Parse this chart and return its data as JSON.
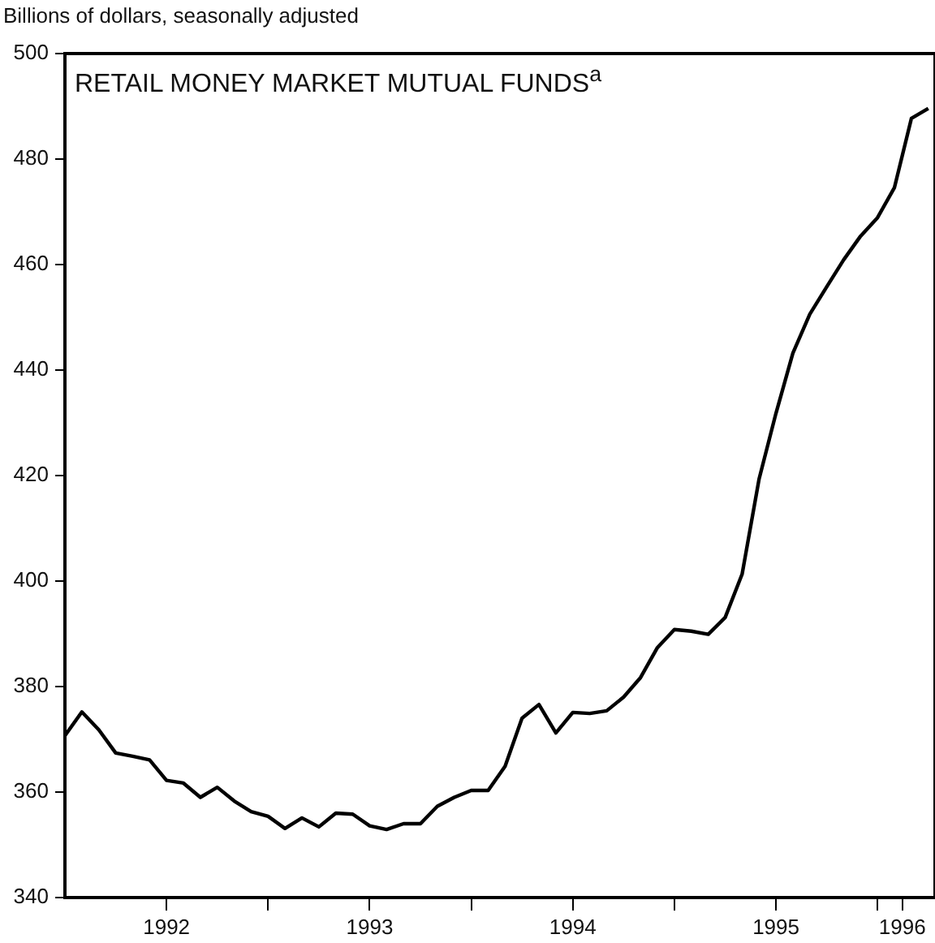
{
  "chart_data": {
    "type": "line",
    "title": "RETAIL MONEY MARKET MUTUAL FUNDS$^{a}$",
    "ylabel": "Billions of dollars, seasonally adjusted",
    "x": [
      "1992-01",
      "1992-02",
      "1992-03",
      "1992-04",
      "1992-05",
      "1992-06",
      "1992-07",
      "1992-08",
      "1992-09",
      "1992-10",
      "1992-11",
      "1992-12",
      "1993-01",
      "1993-02",
      "1993-03",
      "1993-04",
      "1993-05",
      "1993-06",
      "1993-07",
      "1993-08",
      "1993-09",
      "1993-10",
      "1993-11",
      "1993-12",
      "1994-01",
      "1994-02",
      "1994-03",
      "1994-04",
      "1994-05",
      "1994-06",
      "1994-07",
      "1994-08",
      "1994-09",
      "1994-10",
      "1994-11",
      "1994-12",
      "1995-01",
      "1995-02",
      "1995-03",
      "1995-04",
      "1995-05",
      "1995-06",
      "1995-07",
      "1995-08",
      "1995-09",
      "1995-10",
      "1995-11",
      "1995-12",
      "1996-01",
      "1996-02",
      "1996-03",
      "1996-04"
    ],
    "series": [
      {
        "color": "#000000",
        "values": [
          370.7,
          375.2,
          371.8,
          367.4,
          366.8,
          366.1,
          362.2,
          361.7,
          359,
          360.9,
          358.3,
          356.3,
          355.4,
          353.1,
          355.1,
          353.4,
          356,
          355.8,
          353.6,
          352.9,
          354,
          354,
          357.3,
          359,
          360.3,
          360.3,
          364.9,
          374,
          376.6,
          371.2,
          375.1,
          374.9,
          375.4,
          378,
          381.7,
          387.4,
          390.8,
          390.5,
          389.9,
          393.1,
          401.3,
          419.3,
          431.8,
          443.2,
          450.6,
          455.8,
          460.9,
          465.4,
          468.9,
          474.6,
          487.7,
          489.6
        ]
      }
    ],
    "xlim": [
      "1992-01",
      "1996-04-13"
    ],
    "xticks": [
      {
        "value": "1992-07",
        "label": "1992"
      },
      {
        "value": "1993-01",
        "label": null
      },
      {
        "value": "1993-07",
        "label": "1993"
      },
      {
        "value": "1994-01",
        "label": null
      },
      {
        "value": "1994-07",
        "label": "1994"
      },
      {
        "value": "1995-01",
        "label": null
      },
      {
        "value": "1995-07",
        "label": "1995"
      },
      {
        "value": "1996-01",
        "label": null
      },
      {
        "value": "1996-02-15",
        "label": "1996"
      }
    ],
    "ylim": [
      340,
      500
    ],
    "yticks": [
      340,
      360,
      380,
      400,
      420,
      440,
      460,
      480,
      500
    ],
    "grid": false,
    "legend": false,
    "marker": "none",
    "line_style": "solid"
  }
}
